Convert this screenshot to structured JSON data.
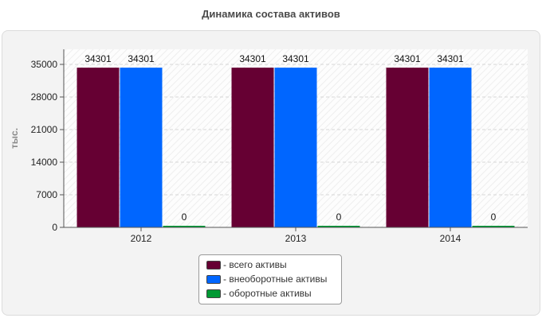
{
  "chart_data": {
    "type": "bar",
    "title": "Динамика состава активов",
    "ylabel": "тыс.",
    "xlabel": "",
    "categories": [
      "2012",
      "2013",
      "2014"
    ],
    "ylim": [
      0,
      35000
    ],
    "yticks": [
      "0",
      "7000",
      "14000",
      "21000",
      "28000",
      "35000"
    ],
    "ytick_values": [
      0,
      7000,
      14000,
      21000,
      28000,
      35000
    ],
    "grid": true,
    "legend_position": "bottom-center",
    "series": [
      {
        "name": "- всего активы",
        "color": "#660033",
        "values": [
          34301,
          34301,
          34301
        ],
        "labels": [
          "34301",
          "34301",
          "34301"
        ]
      },
      {
        "name": "- внеоборотные активы",
        "color": "#0066ff",
        "values": [
          34301,
          34301,
          34301
        ],
        "labels": [
          "34301",
          "34301",
          "34301"
        ]
      },
      {
        "name": "- оборотные активы",
        "color": "#009933",
        "values": [
          0,
          0,
          0
        ],
        "labels": [
          "0",
          "0",
          "0"
        ]
      }
    ]
  }
}
